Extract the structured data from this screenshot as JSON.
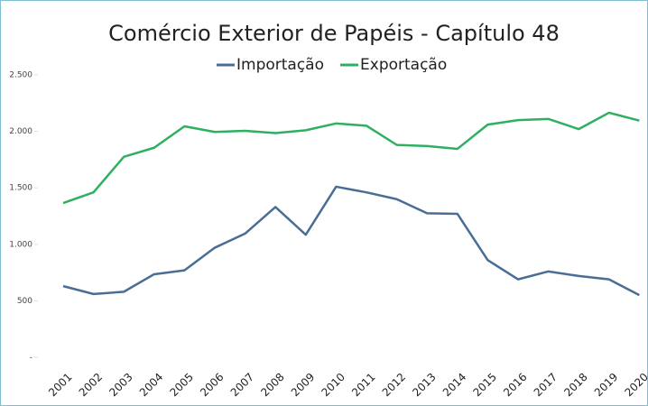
{
  "chart_data": {
    "type": "line",
    "title": "Comércio Exterior de Papéis - Capítulo 48",
    "categories": [
      "2001",
      "2002",
      "2003",
      "2004",
      "2005",
      "2006",
      "2007",
      "2008",
      "2009",
      "2010",
      "2011",
      "2012",
      "2013",
      "2014",
      "2015",
      "2016",
      "2017",
      "2018",
      "2019",
      "2020"
    ],
    "series": [
      {
        "name": "Importação",
        "color": "#4a6d94",
        "values": [
          630,
          560,
          580,
          735,
          770,
          970,
          1095,
          1330,
          1085,
          1510,
          1460,
          1400,
          1275,
          1270,
          860,
          690,
          760,
          720,
          690,
          550
        ]
      },
      {
        "name": "Exportação",
        "color": "#2eb060",
        "values": [
          1365,
          1460,
          1775,
          1855,
          2045,
          1995,
          2005,
          1985,
          2010,
          2070,
          2050,
          1880,
          1870,
          1845,
          2060,
          2100,
          2110,
          2020,
          2165,
          2095
        ]
      }
    ],
    "ylim": [
      0,
      2500
    ],
    "yticks": [
      {
        "value": 0,
        "label": "-"
      },
      500,
      {
        "value": 1000,
        "label": "1.000"
      },
      {
        "value": 1500,
        "label": "1.500"
      },
      {
        "value": 2000,
        "label": "2.000"
      },
      {
        "value": 2500,
        "label": "2.500"
      }
    ],
    "legend": "top"
  }
}
